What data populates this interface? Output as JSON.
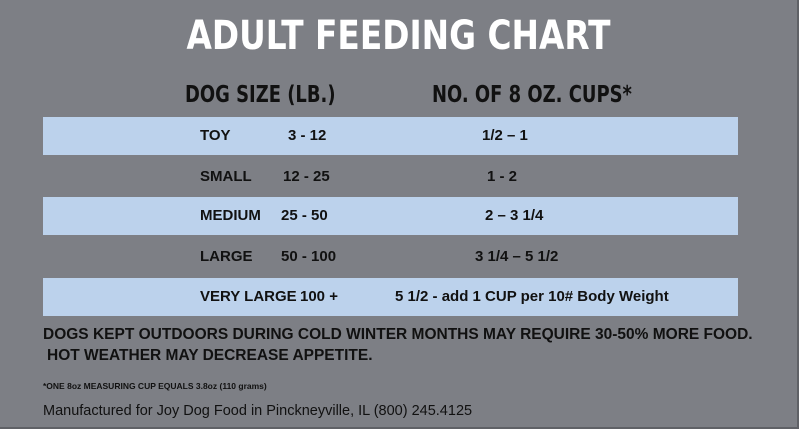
{
  "title": "ADULT FEEDING CHART",
  "headers": {
    "dog_size": "DOG SIZE  (LB.)",
    "cups": "NO. OF 8 OZ. CUPS*"
  },
  "rows": [
    {
      "size": "TOY",
      "weight": "3 - 12",
      "cups": "1/2 – 1"
    },
    {
      "size": "SMALL",
      "weight": "12 - 25",
      "cups": "1  - 2"
    },
    {
      "size": "MEDIUM",
      "weight": "25 - 50",
      "cups": "2 – 3 1/4"
    },
    {
      "size": "LARGE",
      "weight": "50 - 100",
      "cups": "3 1/4 – 5 1/2"
    },
    {
      "size": "VERY LARGE",
      "weight": "100 +",
      "cups": "5 1/2  -  add 1 CUP per 10# Body Weight"
    }
  ],
  "notes": {
    "cold": "DOGS KEPT OUTDOORS DURING COLD WINTER MONTHS MAY REQUIRE 30-50% MORE FOOD.",
    "hot": "HOT WEATHER MAY DECREASE APPETITE.",
    "cup_footnote": "*ONE 8oz MEASURING CUP EQUALS 3.8oz (110 grams)",
    "manufacturer": "Manufactured for Joy Dog Food in Pinckneyville, IL  (800) 245.4125"
  },
  "colors": {
    "panel": "#7d7f85",
    "band": "#bcd2ec",
    "title": "#ffffff"
  }
}
